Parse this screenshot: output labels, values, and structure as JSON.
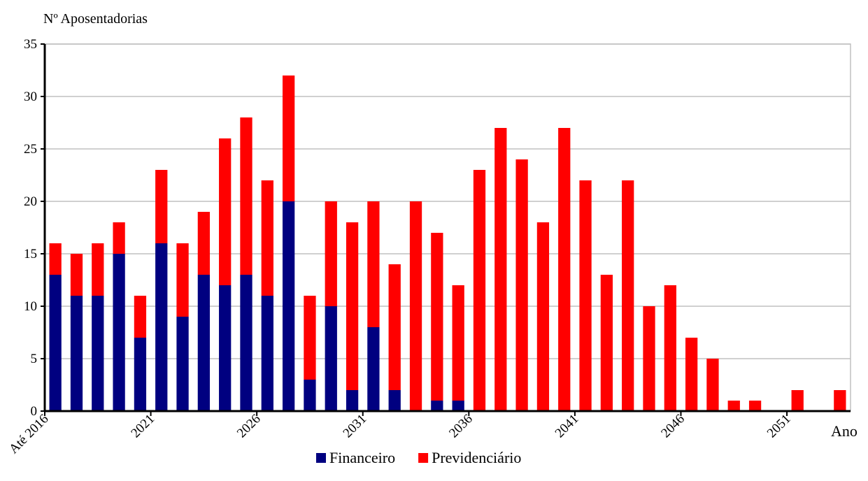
{
  "chart_data": {
    "type": "bar",
    "stacked": true,
    "ylabel": "Nº Aposentadorias",
    "xlabel": "Ano",
    "ylim": [
      0,
      35
    ],
    "yticks": [
      0,
      5,
      10,
      15,
      20,
      25,
      30,
      35
    ],
    "grid": true,
    "legend_position": "bottom",
    "categories": [
      "Até 2016",
      "2017",
      "2018",
      "2019",
      "2020",
      "2021",
      "2022",
      "2023",
      "2024",
      "2025",
      "2026",
      "2027",
      "2028",
      "2029",
      "2030",
      "2031",
      "2032",
      "2033",
      "2034",
      "2035",
      "2036",
      "2037",
      "2038",
      "2039",
      "2040",
      "2041",
      "2042",
      "2043",
      "2044",
      "2045",
      "2046",
      "2047",
      "2048",
      "2049",
      "2050",
      "2051",
      "2052",
      "2053"
    ],
    "xtick_labels": [
      {
        "category": "Até 2016",
        "label": "Até 2016"
      },
      {
        "category": "2021",
        "label": "2021"
      },
      {
        "category": "2026",
        "label": "2026"
      },
      {
        "category": "2031",
        "label": "2031"
      },
      {
        "category": "2036",
        "label": "2036"
      },
      {
        "category": "2041",
        "label": "2041"
      },
      {
        "category": "2046",
        "label": "2046"
      },
      {
        "category": "2051",
        "label": "2051"
      }
    ],
    "series": [
      {
        "name": "Financeiro",
        "color": "#000080",
        "values": [
          13,
          11,
          11,
          15,
          7,
          16,
          9,
          13,
          12,
          13,
          11,
          20,
          3,
          10,
          2,
          8,
          2,
          0,
          1,
          1,
          0,
          0,
          0,
          0,
          0,
          0,
          0,
          0,
          0,
          0,
          0,
          0,
          0,
          0,
          0,
          0,
          0,
          0
        ]
      },
      {
        "name": "Previdenciário",
        "color": "#ff0000",
        "values": [
          3,
          4,
          5,
          3,
          4,
          7,
          7,
          6,
          14,
          15,
          11,
          12,
          8,
          10,
          16,
          12,
          12,
          20,
          16,
          11,
          23,
          27,
          24,
          18,
          27,
          22,
          13,
          22,
          10,
          12,
          7,
          5,
          1,
          1,
          0,
          2,
          0,
          2
        ]
      }
    ],
    "grid_color": "#c0c0c0",
    "axis_color": "#000000"
  }
}
